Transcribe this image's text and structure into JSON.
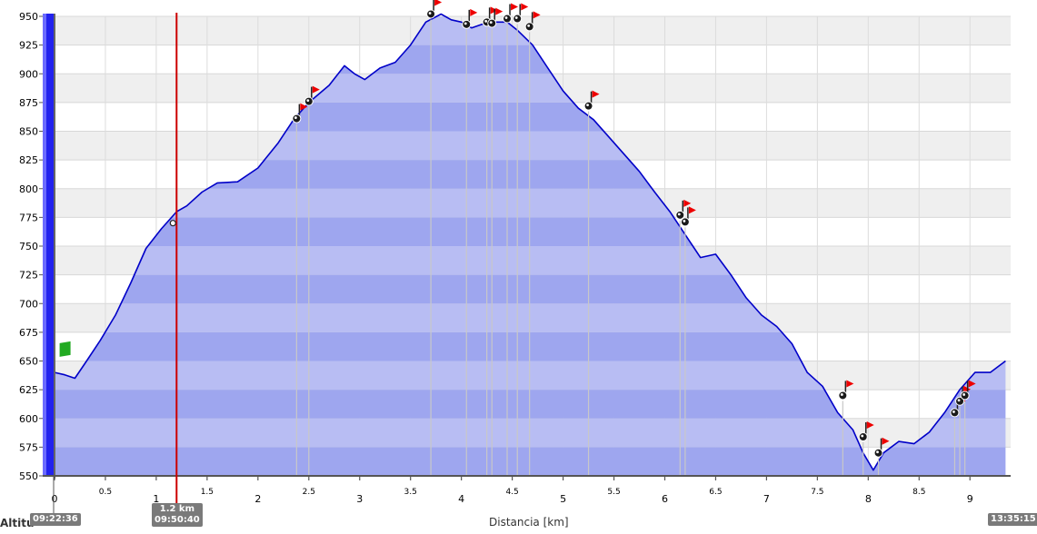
{
  "chart_data": {
    "type": "area",
    "ylabel": "Altitu",
    "xlabel": "Distancia [km]",
    "xlim": [
      0,
      9.4
    ],
    "ylim": [
      550,
      950
    ],
    "x_ticks": [
      0,
      0.5,
      1,
      1.5,
      2,
      2.5,
      3,
      3.5,
      4,
      4.5,
      5,
      5.5,
      6,
      6.5,
      7,
      7.5,
      8,
      8.5,
      9
    ],
    "x_tick_labels": [
      "0",
      "0.5",
      "1",
      "1.5",
      "2",
      "2.5",
      "3",
      "3.5",
      "4",
      "4.5",
      "5",
      "5.5",
      "6",
      "6.5",
      "7",
      "7.5",
      "8",
      "8.5",
      "9"
    ],
    "y_ticks": [
      550,
      575,
      600,
      625,
      650,
      675,
      700,
      725,
      750,
      775,
      800,
      825,
      850,
      875,
      900,
      925,
      950
    ],
    "series": [
      {
        "name": "",
        "x": [
          0,
          0.1,
          0.2,
          0.3,
          0.45,
          0.6,
          0.75,
          0.9,
          1.05,
          1.2,
          1.3,
          1.45,
          1.6,
          1.8,
          2.0,
          2.2,
          2.35,
          2.5,
          2.7,
          2.85,
          2.95,
          3.05,
          3.2,
          3.35,
          3.5,
          3.65,
          3.8,
          3.9,
          4.0,
          4.1,
          4.2,
          4.3,
          4.45,
          4.55,
          4.7,
          4.85,
          5.0,
          5.15,
          5.3,
          5.45,
          5.6,
          5.75,
          5.9,
          6.05,
          6.2,
          6.35,
          6.5,
          6.65,
          6.8,
          6.95,
          7.1,
          7.25,
          7.4,
          7.55,
          7.7,
          7.85,
          7.95,
          8.05,
          8.15,
          8.3,
          8.45,
          8.6,
          8.75,
          8.9,
          9.05,
          9.2,
          9.35
        ],
        "y": [
          640,
          638,
          635,
          648,
          668,
          690,
          718,
          748,
          765,
          780,
          785,
          797,
          805,
          806,
          818,
          840,
          860,
          875,
          890,
          907,
          900,
          895,
          905,
          910,
          925,
          945,
          952,
          947,
          945,
          940,
          943,
          945,
          945,
          938,
          925,
          905,
          885,
          870,
          860,
          845,
          830,
          815,
          797,
          780,
          760,
          740,
          743,
          725,
          705,
          690,
          680,
          665,
          640,
          628,
          605,
          590,
          570,
          555,
          570,
          580,
          578,
          588,
          605,
          625,
          640,
          640,
          650
        ]
      }
    ],
    "markers": {
      "flag_x": [
        2.38,
        2.5,
        3.7,
        4.05,
        4.25,
        4.3,
        4.45,
        4.55,
        4.67,
        5.25,
        6.15,
        6.2,
        7.75,
        7.95,
        8.1,
        8.85,
        8.9,
        8.95
      ],
      "flag_y": [
        861,
        876,
        952,
        943,
        945,
        944,
        948,
        948,
        941,
        872,
        777,
        771,
        620,
        584,
        570,
        605,
        615,
        620
      ],
      "start_x": 0.05,
      "start_y": 660,
      "cursor_x": 1.2,
      "cursor_point_y": 770
    },
    "annotations": {
      "start_time": "09:22:36",
      "cursor_km": "1.2 km",
      "cursor_time": "09:50:40",
      "end_time": "13:35:15"
    },
    "colors": {
      "line": "#0000c8",
      "fill_dark": "#9ea6ef",
      "fill_light": "#b8bdf3",
      "band_gray": "#efefef",
      "cursor": "#cc0000",
      "flag": "#ee0000",
      "start_flag": "#22aa22",
      "badge": "#7a7a7a"
    }
  }
}
